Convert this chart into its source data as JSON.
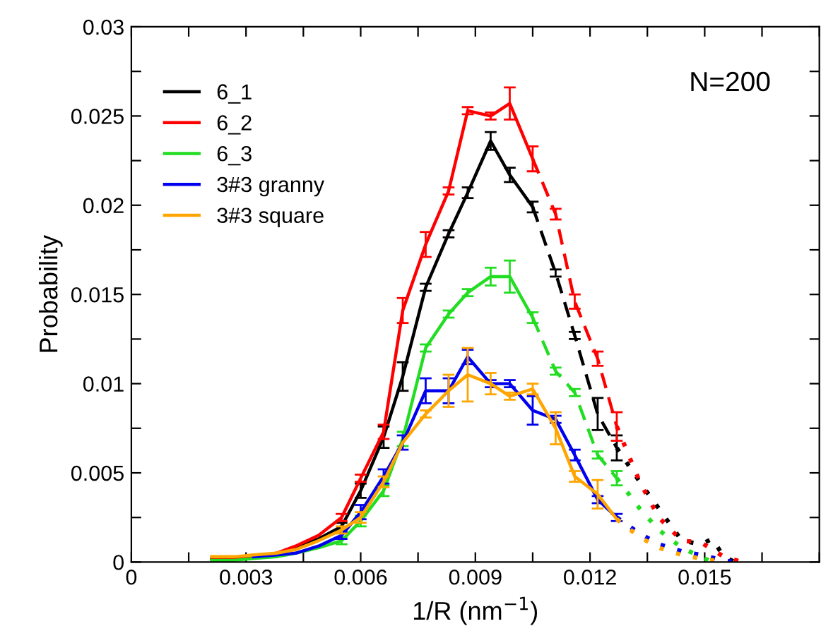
{
  "chart_data": {
    "type": "line",
    "xlabel": "1/R (nm$^{−1}$)",
    "ylabel": "Probability",
    "annotations": [
      "N=200"
    ],
    "xlim": [
      0,
      0.018
    ],
    "ylim": [
      0,
      0.03
    ],
    "xticks": [
      0,
      {
        "value": 0.0015,
        "label": null
      },
      0.003,
      {
        "value": 0.0045,
        "label": null
      },
      0.006,
      {
        "value": 0.0075,
        "label": null
      },
      0.009,
      {
        "value": 0.0105,
        "label": null
      },
      0.012,
      {
        "value": 0.0135,
        "label": null
      },
      0.015,
      {
        "value": 0.0165,
        "label": null
      },
      {
        "value": 0.018,
        "label": null
      }
    ],
    "yticks": [
      0,
      {
        "value": 0.0025,
        "label": null
      },
      0.005,
      {
        "value": 0.0075,
        "label": null
      },
      0.01,
      {
        "value": 0.0125,
        "label": null
      },
      0.015,
      {
        "value": 0.0175,
        "label": null
      },
      0.02,
      {
        "value": 0.0225,
        "label": null
      },
      0.025,
      {
        "value": 0.0275,
        "label": null
      },
      0.03
    ],
    "grid": false,
    "legend": "top left",
    "marker": "none",
    "series": [
      {
        "name": "6_1",
        "color": "#000000",
        "line_style": "solid",
        "x": [
          0.0021,
          0.0027,
          0.0032,
          0.0038,
          0.0043,
          0.0049,
          0.0055,
          0.006,
          0.0066,
          0.0071,
          0.0077,
          0.0083,
          0.0088,
          0.0094,
          0.0099,
          0.0105
        ],
        "values": [
          0.0002,
          0.0002,
          0.0003,
          0.0004,
          0.0008,
          0.0013,
          0.002,
          0.004,
          0.007,
          0.0104,
          0.0154,
          0.0184,
          0.0207,
          0.0236,
          0.0217,
          0.0199
        ],
        "errors": [
          null,
          null,
          null,
          null,
          null,
          null,
          0.0002,
          0.0004,
          0.0006,
          0.0008,
          0.0002,
          0.0002,
          0.0003,
          0.0005,
          0.0004,
          0.0003
        ]
      },
      {
        "color": "#000000",
        "line_style": "dashed",
        "x": [
          0.0105,
          0.0111,
          0.0116,
          0.0122,
          0.0127
        ],
        "values": [
          0.0199,
          0.0162,
          0.0127,
          0.0083,
          0.0064
        ],
        "errors": [
          null,
          0.0002,
          0.0002,
          0.0009,
          0.0007
        ]
      },
      {
        "color": "#000000",
        "line_style": "dotted",
        "x": [
          0.0127,
          0.0133,
          0.0138,
          0.0144,
          0.0149,
          0.0152,
          0.0155,
          0.0158
        ],
        "values": [
          0.0064,
          0.0045,
          0.003,
          0.0012,
          0.001,
          0.0013,
          0.0003,
          0
        ]
      },
      {
        "name": "6_2",
        "color": "#ff0000",
        "line_style": "solid",
        "x": [
          0.0021,
          0.0027,
          0.0032,
          0.0038,
          0.0043,
          0.0049,
          0.0055,
          0.006,
          0.0066,
          0.0071,
          0.0077,
          0.0083,
          0.0088,
          0.0094,
          0.0099,
          0.0105
        ],
        "values": [
          0.0002,
          0.0002,
          0.0003,
          0.0005,
          0.0009,
          0.0015,
          0.0025,
          0.0047,
          0.0073,
          0.0141,
          0.0178,
          0.0208,
          0.0253,
          0.025,
          0.0257,
          0.0226
        ],
        "errors": [
          null,
          null,
          null,
          null,
          null,
          null,
          0.0002,
          0.0002,
          0.0004,
          0.0007,
          0.0007,
          0.0002,
          0.0002,
          0.0002,
          0.0009,
          0.0007
        ]
      },
      {
        "color": "#ff0000",
        "line_style": "dashed",
        "x": [
          0.0105,
          0.0111,
          0.0116,
          0.0122,
          0.0127
        ],
        "values": [
          0.0226,
          0.0195,
          0.0146,
          0.0114,
          0.0076
        ],
        "errors": [
          null,
          0.0003,
          0.0004,
          0.0004,
          0.0008
        ]
      },
      {
        "color": "#ff0000",
        "line_style": "dotted",
        "x": [
          0.0127,
          0.0133,
          0.0138,
          0.0144,
          0.0149,
          0.0155,
          0.016
        ],
        "values": [
          0.0076,
          0.0045,
          0.0025,
          0.0012,
          0.0011,
          0.0003,
          0
        ]
      },
      {
        "name": "6_3",
        "color": "#22dd22",
        "line_style": "solid",
        "x": [
          0.0021,
          0.0027,
          0.0032,
          0.0038,
          0.0043,
          0.0049,
          0.0055,
          0.006,
          0.0066,
          0.0071,
          0.0077,
          0.0083,
          0.0088,
          0.0094,
          0.0099,
          0.0105
        ],
        "values": [
          0.0001,
          0.0001,
          0.0002,
          0.0003,
          0.0005,
          0.0008,
          0.0012,
          0.0023,
          0.004,
          0.0069,
          0.012,
          0.0139,
          0.0151,
          0.016,
          0.016,
          0.0137
        ],
        "errors": [
          null,
          null,
          null,
          null,
          null,
          null,
          0.0002,
          0.0003,
          0.0003,
          0.0004,
          0.0002,
          0.0002,
          0.0002,
          0.0005,
          0.0009,
          0.0003
        ]
      },
      {
        "color": "#22dd22",
        "line_style": "dashed",
        "x": [
          0.0105,
          0.0111,
          0.0116,
          0.0122,
          0.0127
        ],
        "values": [
          0.0137,
          0.0107,
          0.0095,
          0.006,
          0.0047
        ],
        "errors": [
          null,
          0.0002,
          0.0002,
          0.0002,
          0.0004
        ]
      },
      {
        "color": "#22dd22",
        "line_style": "dotted",
        "x": [
          0.0127,
          0.0133,
          0.0138,
          0.0144,
          0.0149,
          0.0152
        ],
        "values": [
          0.0047,
          0.003,
          0.0018,
          0.0008,
          0.0003,
          0
        ]
      },
      {
        "name": "3#3 granny",
        "color": "#0000ee",
        "line_style": "solid",
        "x": [
          0.0032,
          0.0038,
          0.0043,
          0.0049,
          0.0055,
          0.006,
          0.0066,
          0.0071,
          0.0077,
          0.0083,
          0.0088,
          0.0094,
          0.0099,
          0.0105,
          0.0111,
          0.0116,
          0.0122,
          0.0127
        ],
        "values": [
          0.0003,
          0.0004,
          0.0005,
          0.0009,
          0.0015,
          0.0028,
          0.0048,
          0.0067,
          0.0096,
          0.0096,
          0.0115,
          0.01,
          0.01,
          0.0085,
          0.008,
          0.006,
          0.0035,
          0.0025
        ],
        "errors": [
          null,
          null,
          null,
          null,
          0.0002,
          0.0004,
          0.0004,
          0.0004,
          0.0007,
          0.0007,
          0.0004,
          0.0002,
          0.0002,
          0.0008,
          0.0002,
          0.0003,
          0.0002,
          0.0002
        ]
      },
      {
        "color": "#0000ee",
        "line_style": "dotted",
        "x": [
          0.0127,
          0.0133,
          0.0138,
          0.0144,
          0.0149,
          0.0155,
          0.0158
        ],
        "values": [
          0.0025,
          0.0016,
          0.001,
          0.0006,
          0.0004,
          0.0001,
          0
        ]
      },
      {
        "name": "3#3 square",
        "color": "#ffa500",
        "line_style": "solid",
        "x": [
          0.0021,
          0.0027,
          0.0032,
          0.0038,
          0.0043,
          0.0049,
          0.0055,
          0.006,
          0.0066,
          0.0071,
          0.0077,
          0.0083,
          0.0088,
          0.0094,
          0.0099,
          0.0105,
          0.0111,
          0.0116,
          0.0122,
          0.0127
        ],
        "values": [
          0.0003,
          0.0003,
          0.0004,
          0.0005,
          0.0007,
          0.0012,
          0.0018,
          0.0025,
          0.0045,
          0.0067,
          0.0083,
          0.0096,
          0.0105,
          0.01,
          0.0093,
          0.0097,
          0.0075,
          0.0048,
          0.0038,
          0.0024
        ],
        "errors": [
          null,
          null,
          null,
          null,
          null,
          null,
          0.0002,
          0.0003,
          0.0003,
          null,
          0.0002,
          0.0009,
          0.0015,
          0.0006,
          0.0002,
          0.0003,
          0.0009,
          0.0003,
          0.0008,
          null
        ]
      },
      {
        "color": "#ffa500",
        "line_style": "dotted",
        "x": [
          0.0127,
          0.0133,
          0.0138,
          0.0144,
          0.0149,
          0.0155
        ],
        "values": [
          0.0024,
          0.0014,
          0.0008,
          0.0004,
          0.0002,
          0
        ]
      }
    ]
  }
}
